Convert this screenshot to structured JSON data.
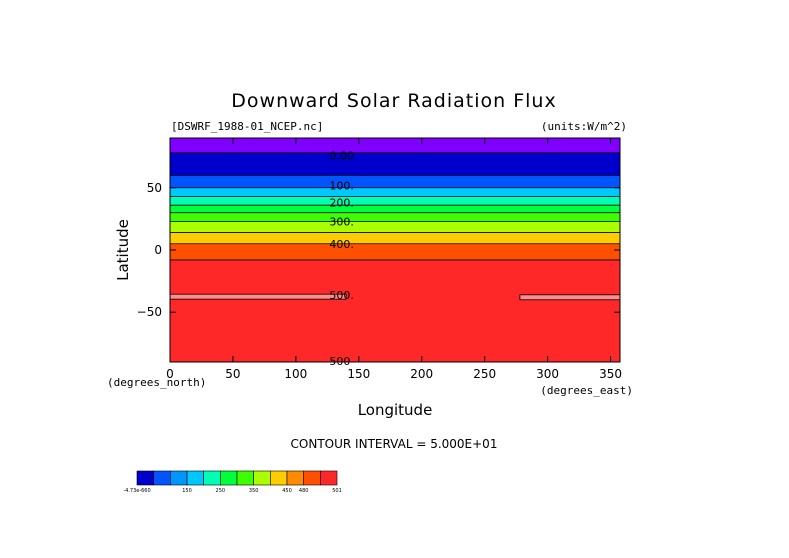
{
  "chart_data": {
    "type": "heatmap",
    "title": "Downward Solar Radiation Flux",
    "file_label": "[DSWRF_1988-01_NCEP.nc]",
    "units_label": "(units:W/m^2)",
    "xlabel": "Longitude",
    "ylabel": "Latitude",
    "x_units_label": "(degrees_east)",
    "y_units_label": "(degrees_north)",
    "xlim": [
      0,
      357.5
    ],
    "ylim": [
      -90,
      90
    ],
    "x_ticks": [
      0,
      50,
      100,
      150,
      200,
      250,
      300,
      350
    ],
    "y_ticks": [
      {
        "value": 50,
        "label": "50"
      },
      {
        "value": 0,
        "label": "0"
      },
      {
        "value": -50,
        "label": "−50"
      }
    ],
    "contour_interval_text": "CONTOUR INTERVAL = 5.000E+01",
    "zonal_bands": [
      {
        "lat_from": 90,
        "lat_to": 78,
        "color": "#7f00ff"
      },
      {
        "lat_from": 78,
        "lat_to": 60,
        "color": "#0000cc"
      },
      {
        "lat_from": 60,
        "lat_to": 50,
        "color": "#0055ff"
      },
      {
        "lat_from": 50,
        "lat_to": 43,
        "color": "#00c8ff"
      },
      {
        "lat_from": 43,
        "lat_to": 36,
        "color": "#00ffb4"
      },
      {
        "lat_from": 36,
        "lat_to": 30,
        "color": "#00ff3c"
      },
      {
        "lat_from": 30,
        "lat_to": 23,
        "color": "#3cff00"
      },
      {
        "lat_from": 23,
        "lat_to": 14,
        "color": "#aaff00"
      },
      {
        "lat_from": 14,
        "lat_to": 5,
        "color": "#ffcc00"
      },
      {
        "lat_from": 5,
        "lat_to": -8,
        "color": "#ff5000"
      },
      {
        "lat_from": -8,
        "lat_to": -90,
        "color": "#ff2828"
      }
    ],
    "pink_patches": [
      {
        "lon_from": 0,
        "lon_to": 140,
        "lat_from": -35.5,
        "lat_to": -39.5
      },
      {
        "lon_from": 278,
        "lon_to": 357.5,
        "lat_from": -36,
        "lat_to": -40
      }
    ],
    "contour_labels": [
      {
        "lat": 76,
        "lon": 125,
        "text": "0.00"
      },
      {
        "lat": 52,
        "lon": 125,
        "text": "100."
      },
      {
        "lat": 38,
        "lon": 125,
        "text": "200."
      },
      {
        "lat": 23,
        "lon": 125,
        "text": "300."
      },
      {
        "lat": 5,
        "lon": 125,
        "text": "400."
      },
      {
        "lat": -36,
        "lon": 125,
        "text": "500."
      },
      {
        "lat": -89,
        "lon": 125,
        "text": "500"
      }
    ],
    "colorbar": {
      "colors": [
        "#0000cc",
        "#0055ff",
        "#0096ff",
        "#00c8ff",
        "#00ffb4",
        "#00ff3c",
        "#3cff00",
        "#aaff00",
        "#ffcc00",
        "#ff8c00",
        "#ff5000",
        "#ff2828"
      ],
      "tick_labels": [
        {
          "index": 0,
          "text": "-4.73e-660"
        },
        {
          "index": 3,
          "text": "150"
        },
        {
          "index": 5,
          "text": "250"
        },
        {
          "index": 7,
          "text": "350"
        },
        {
          "index": 9,
          "text": "450"
        },
        {
          "index": 10,
          "text": "480"
        },
        {
          "index": 12,
          "text": "501"
        }
      ]
    }
  }
}
